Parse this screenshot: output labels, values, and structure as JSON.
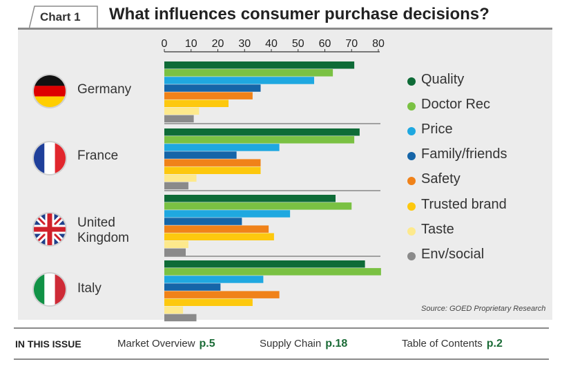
{
  "header": {
    "tab_label": "Chart 1",
    "title": "What influences consumer purchase decisions?"
  },
  "chart_data": {
    "type": "bar",
    "orientation": "horizontal",
    "title": "What influences consumer purchase decisions?",
    "xlim": [
      0,
      80
    ],
    "x_ticks": [
      "0",
      "10",
      "20",
      "30",
      "40",
      "50",
      "60",
      "70",
      "80"
    ],
    "x_axis_position": "top",
    "grid": false,
    "legend_position": "right",
    "categories": [
      "Germany",
      "France",
      "United Kingdom",
      "Italy"
    ],
    "series": [
      {
        "name": "Quality",
        "color": "#0e6b37",
        "values": [
          71,
          73,
          64,
          75
        ]
      },
      {
        "name": "Doctor Rec",
        "color": "#7ac143",
        "values": [
          63,
          71,
          70,
          81
        ]
      },
      {
        "name": "Price",
        "color": "#1fa8e0",
        "values": [
          56,
          43,
          47,
          37
        ]
      },
      {
        "name": "Family/friends",
        "color": "#1565a8",
        "values": [
          36,
          27,
          29,
          21
        ]
      },
      {
        "name": "Safety",
        "color": "#f08219",
        "values": [
          33,
          36,
          39,
          43
        ]
      },
      {
        "name": "Trusted brand",
        "color": "#fdc80e",
        "values": [
          24,
          36,
          41,
          33
        ]
      },
      {
        "name": "Taste",
        "color": "#fde98c",
        "values": [
          13,
          12,
          9,
          7
        ]
      },
      {
        "name": "Env/social",
        "color": "#8a8a8a",
        "values": [
          11,
          9,
          8,
          12
        ]
      }
    ],
    "source": "Source: GOED Proprietary Research"
  },
  "countries": [
    {
      "label": "Germany",
      "flag": "germany-flag-icon"
    },
    {
      "label": "France",
      "flag": "france-flag-icon"
    },
    {
      "label": "United Kingdom",
      "flag": "uk-flag-icon"
    },
    {
      "label": "Italy",
      "flag": "italy-flag-icon"
    }
  ],
  "footer": {
    "heading": "IN THIS ISSUE",
    "items": [
      {
        "label": "Market Overview",
        "page": "p.5"
      },
      {
        "label": "Supply Chain",
        "page": "p.18"
      },
      {
        "label": "Table of Contents",
        "page": "p.2"
      }
    ]
  },
  "colors": {
    "panel_bg": "#ececec",
    "rule": "#8a8a8a",
    "accent_green": "#1a6b36"
  }
}
